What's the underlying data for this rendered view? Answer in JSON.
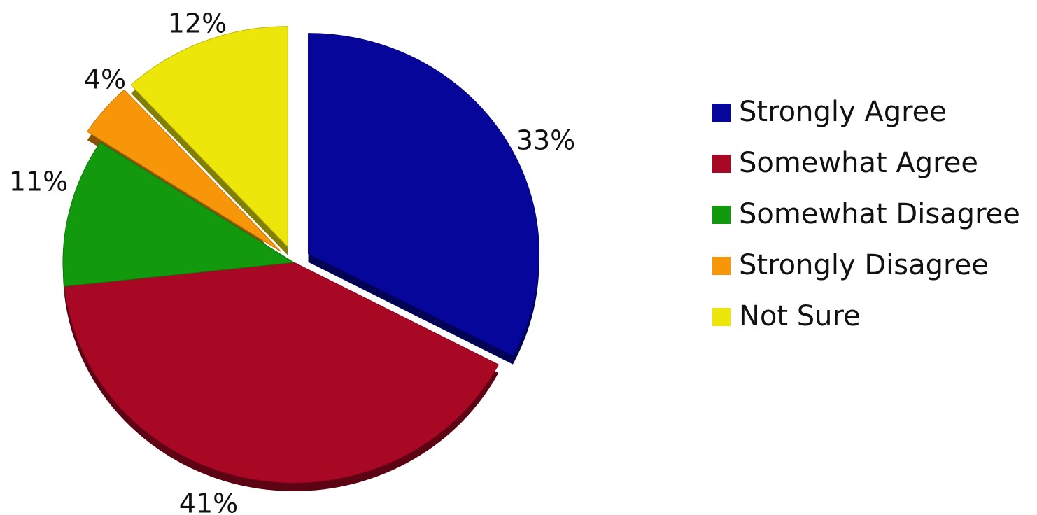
{
  "chart_data": {
    "type": "pie",
    "title": "",
    "slices": [
      {
        "name": "Strongly Agree",
        "value": 33,
        "label": "33%",
        "color": "#06069a",
        "exploded": true
      },
      {
        "name": "Somewhat Agree",
        "value": 41,
        "label": "41%",
        "color": "#a80824"
      },
      {
        "name": "Somewhat Disagree",
        "value": 11,
        "label": "11%",
        "color": "#12990e"
      },
      {
        "name": "Strongly Disagree",
        "value": 4,
        "label": "4%",
        "color": "#f8960a",
        "exploded": true
      },
      {
        "name": "Not Sure",
        "value": 12,
        "label": "12%",
        "color": "#ece60a",
        "exploded": true
      }
    ],
    "legend": {
      "position": "right",
      "entries": [
        "Strongly Agree",
        "Somewhat Agree",
        "Somewhat Disagree",
        "Strongly Disagree",
        "Not Sure"
      ]
    },
    "style": "3d"
  }
}
